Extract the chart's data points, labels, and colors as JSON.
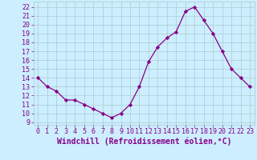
{
  "x": [
    0,
    1,
    2,
    3,
    4,
    5,
    6,
    7,
    8,
    9,
    10,
    11,
    12,
    13,
    14,
    15,
    16,
    17,
    18,
    19,
    20,
    21,
    22,
    23
  ],
  "y": [
    14,
    13,
    12.5,
    11.5,
    11.5,
    11,
    10.5,
    10,
    9.5,
    10,
    11,
    13,
    15.8,
    17.5,
    18.5,
    19.2,
    21.5,
    22,
    20.5,
    19,
    17,
    15,
    14,
    13
  ],
  "line_color": "#880088",
  "marker": "D",
  "marker_size": 2.2,
  "bg_color": "#cceeff",
  "grid_color": "#aacccc",
  "xlabel": "Windchill (Refroidissement éolien,°C)",
  "ylabel_ticks": [
    9,
    10,
    11,
    12,
    13,
    14,
    15,
    16,
    17,
    18,
    19,
    20,
    21,
    22
  ],
  "ylim": [
    8.7,
    22.6
  ],
  "xlim": [
    -0.5,
    23.5
  ],
  "xticks": [
    0,
    1,
    2,
    3,
    4,
    5,
    6,
    7,
    8,
    9,
    10,
    11,
    12,
    13,
    14,
    15,
    16,
    17,
    18,
    19,
    20,
    21,
    22,
    23
  ],
  "tick_color": "#880088",
  "label_color": "#880088",
  "xlabel_fontsize": 7.0,
  "tick_fontsize": 6.0
}
